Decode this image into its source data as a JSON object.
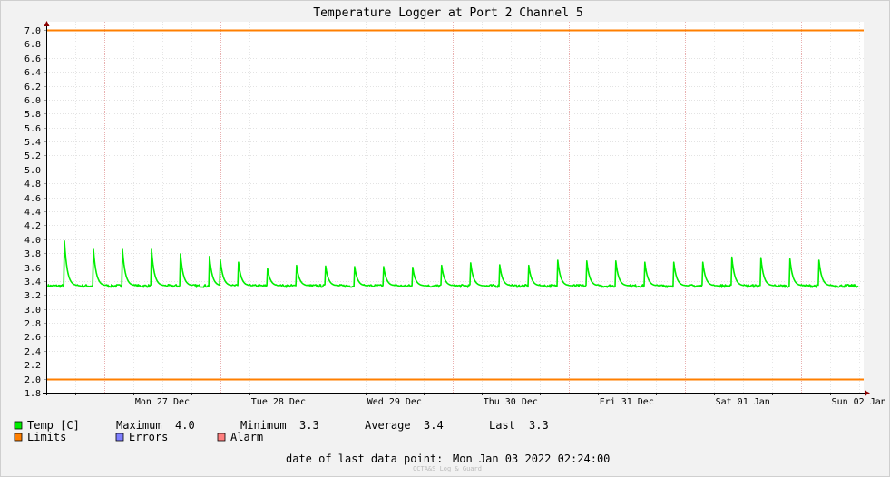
{
  "chart_data": {
    "type": "line",
    "title": "Temperature Logger at Port 2 Channel 5",
    "ylim": [
      1.8,
      7.0
    ],
    "ytick_step": 0.2,
    "y_ticks": [
      "7.0",
      "6.8",
      "6.6",
      "6.4",
      "6.2",
      "6.0",
      "5.8",
      "5.6",
      "5.4",
      "5.2",
      "5.0",
      "4.8",
      "4.6",
      "4.4",
      "4.2",
      "4.0",
      "3.8",
      "3.6",
      "3.4",
      "3.2",
      "3.0",
      "2.8",
      "2.6",
      "2.4",
      "2.2",
      "2.0",
      "1.8"
    ],
    "xlim_hours": [
      -12,
      157
    ],
    "x_ticks": [
      {
        "label": "Mon 27 Dec",
        "hour": 12
      },
      {
        "label": "Tue 28 Dec",
        "hour": 36
      },
      {
        "label": "Wed 29 Dec",
        "hour": 60
      },
      {
        "label": "Thu 30 Dec",
        "hour": 84
      },
      {
        "label": "Fri 31 Dec",
        "hour": 108
      },
      {
        "label": "Sat 01 Jan",
        "hour": 132
      },
      {
        "label": "Sun 02 Jan",
        "hour": 156
      }
    ],
    "grid": true,
    "limits": {
      "upper": 7.0,
      "lower": 2.0
    },
    "series": [
      {
        "name": "Temp [C]",
        "color": "#00ee00",
        "baseline": 3.33,
        "spikes": [
          {
            "hour": -8.3,
            "value": 4.03
          },
          {
            "hour": -2.3,
            "value": 3.9
          },
          {
            "hour": 3.7,
            "value": 3.9
          },
          {
            "hour": 9.7,
            "value": 3.9
          },
          {
            "hour": 15.7,
            "value": 3.83
          },
          {
            "hour": 21.7,
            "value": 3.79
          },
          {
            "hour": 23.9,
            "value": 3.77
          },
          {
            "hour": 27.7,
            "value": 3.7
          },
          {
            "hour": 33.7,
            "value": 3.6
          },
          {
            "hour": 39.7,
            "value": 3.65
          },
          {
            "hour": 45.7,
            "value": 3.64
          },
          {
            "hour": 51.7,
            "value": 3.63
          },
          {
            "hour": 57.7,
            "value": 3.63
          },
          {
            "hour": 63.7,
            "value": 3.62
          },
          {
            "hour": 69.7,
            "value": 3.65
          },
          {
            "hour": 75.7,
            "value": 3.69
          },
          {
            "hour": 81.7,
            "value": 3.66
          },
          {
            "hour": 87.7,
            "value": 3.65
          },
          {
            "hour": 93.7,
            "value": 3.73
          },
          {
            "hour": 99.7,
            "value": 3.72
          },
          {
            "hour": 105.7,
            "value": 3.72
          },
          {
            "hour": 111.7,
            "value": 3.7
          },
          {
            "hour": 117.7,
            "value": 3.7
          },
          {
            "hour": 123.7,
            "value": 3.7
          },
          {
            "hour": 129.7,
            "value": 3.78
          },
          {
            "hour": 135.7,
            "value": 3.77
          },
          {
            "hour": 141.7,
            "value": 3.75
          },
          {
            "hour": 147.7,
            "value": 3.73
          }
        ]
      }
    ]
  },
  "legend": {
    "temp_label": "Temp [C]",
    "limits_label": "Limits",
    "errors_label": "Errors",
    "alarm_label": "Alarm",
    "maximum_label": "Maximum",
    "maximum_value": "4.0",
    "minimum_label": "Minimum",
    "minimum_value": "3.3",
    "average_label": "Average",
    "average_value": "3.4",
    "last_label": "Last",
    "last_value": "3.3",
    "colors": {
      "temp": "#00ee00",
      "limits": "#ff7f00",
      "errors": "#7f7fff",
      "alarm": "#ff7f7f"
    }
  },
  "footer": {
    "date_label": "date of last data point:",
    "date_value": "Mon Jan 03 2022 02:24:00",
    "watermark": "OCTA&S Log & Guard"
  }
}
